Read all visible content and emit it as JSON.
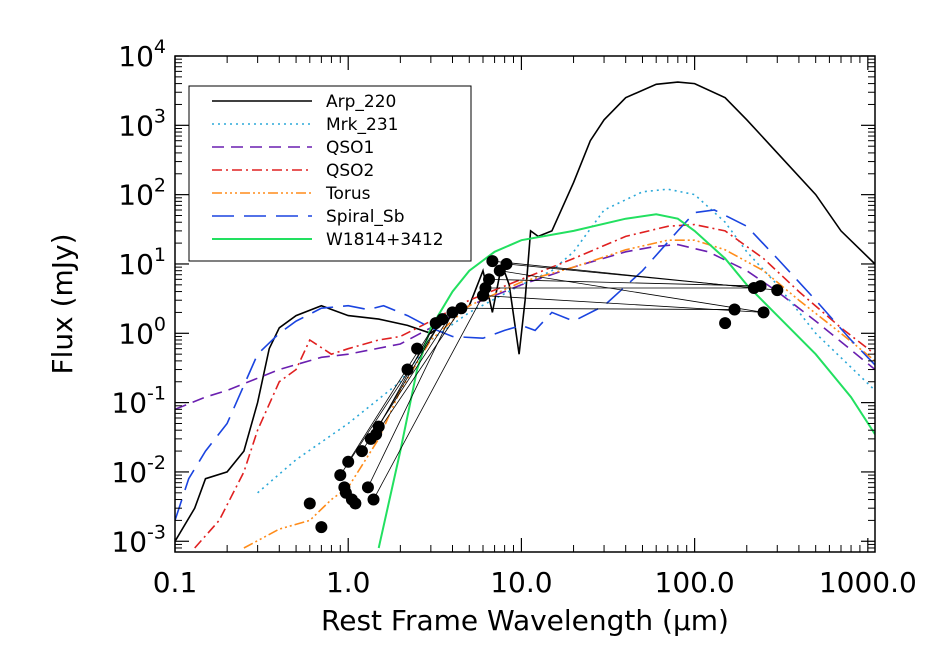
{
  "chart_data": {
    "type": "line",
    "xlabel": "Rest Frame Wavelength (μm)",
    "ylabel": "Flux (mJy)",
    "xscale": "log",
    "yscale": "log",
    "xlim": [
      0.1,
      1100
    ],
    "ylim": [
      0.0007,
      10000
    ],
    "x_ticks": [
      {
        "value": 0.1,
        "label": "0.1"
      },
      {
        "value": 1,
        "label": "1.0"
      },
      {
        "value": 10,
        "label": "10.0"
      },
      {
        "value": 100,
        "label": "100.0"
      },
      {
        "value": 1000,
        "label": "1000.0"
      }
    ],
    "y_ticks": [
      {
        "value": 0.001,
        "base": "10",
        "exp": "-3"
      },
      {
        "value": 0.01,
        "base": "10",
        "exp": "-2"
      },
      {
        "value": 0.1,
        "base": "10",
        "exp": "-1"
      },
      {
        "value": 1,
        "base": "10",
        "exp": "0"
      },
      {
        "value": 10,
        "base": "10",
        "exp": "1"
      },
      {
        "value": 100,
        "base": "10",
        "exp": "2"
      },
      {
        "value": 1000,
        "base": "10",
        "exp": "3"
      },
      {
        "value": 10000,
        "base": "10",
        "exp": "4"
      }
    ],
    "legend_position": "top-left",
    "grid": false,
    "series": [
      {
        "name": "Arp_220",
        "color": "#000000",
        "dash": "none",
        "points": [
          [
            0.1,
            0.001
          ],
          [
            0.13,
            0.003
          ],
          [
            0.15,
            0.008
          ],
          [
            0.2,
            0.01
          ],
          [
            0.25,
            0.02
          ],
          [
            0.3,
            0.1
          ],
          [
            0.35,
            0.6
          ],
          [
            0.4,
            1.2
          ],
          [
            0.5,
            1.8
          ],
          [
            0.7,
            2.5
          ],
          [
            1.0,
            1.8
          ],
          [
            1.5,
            1.6
          ],
          [
            2.2,
            1.3
          ],
          [
            3.0,
            1.0
          ],
          [
            4.0,
            1.8
          ],
          [
            5.0,
            2.5
          ],
          [
            6.0,
            8.0
          ],
          [
            6.8,
            2.0
          ],
          [
            7.7,
            10.0
          ],
          [
            8.5,
            5.0
          ],
          [
            9.7,
            0.5
          ],
          [
            10.5,
            3.0
          ],
          [
            11.3,
            30.0
          ],
          [
            12.5,
            25.0
          ],
          [
            15.0,
            30.0
          ],
          [
            20.0,
            150.0
          ],
          [
            25.0,
            600.0
          ],
          [
            30.0,
            1200.0
          ],
          [
            40.0,
            2500.0
          ],
          [
            60.0,
            3900.0
          ],
          [
            80.0,
            4200.0
          ],
          [
            100.0,
            4000.0
          ],
          [
            150.0,
            2500.0
          ],
          [
            200.0,
            1200.0
          ],
          [
            300.0,
            400.0
          ],
          [
            500.0,
            100.0
          ],
          [
            700.0,
            30.0
          ],
          [
            1100.0,
            10.0
          ]
        ]
      },
      {
        "name": "Mrk_231",
        "color": "#2ba8d8",
        "dash": "2,4",
        "points": [
          [
            0.3,
            0.005
          ],
          [
            0.5,
            0.015
          ],
          [
            1.0,
            0.05
          ],
          [
            2.0,
            0.2
          ],
          [
            3.0,
            0.8
          ],
          [
            5.0,
            2.0
          ],
          [
            10.0,
            5.0
          ],
          [
            15.0,
            8.0
          ],
          [
            20.0,
            15.0
          ],
          [
            30.0,
            60.0
          ],
          [
            50.0,
            110.0
          ],
          [
            70.0,
            120.0
          ],
          [
            100.0,
            100.0
          ],
          [
            150.0,
            40.0
          ],
          [
            200.0,
            15.0
          ],
          [
            300.0,
            5.0
          ],
          [
            500.0,
            1.0
          ],
          [
            1100.0,
            0.15
          ]
        ]
      },
      {
        "name": "QSO1",
        "color": "#6a1fb0",
        "dash": "12,7",
        "points": [
          [
            0.1,
            0.08
          ],
          [
            0.15,
            0.12
          ],
          [
            0.2,
            0.15
          ],
          [
            0.4,
            0.3
          ],
          [
            0.7,
            0.45
          ],
          [
            1.0,
            0.5
          ],
          [
            2.0,
            0.7
          ],
          [
            3.0,
            1.2
          ],
          [
            5.0,
            2.5
          ],
          [
            10.0,
            5.0
          ],
          [
            20.0,
            9.0
          ],
          [
            40.0,
            15.0
          ],
          [
            60.0,
            18.0
          ],
          [
            80.0,
            19.0
          ],
          [
            120.0,
            15.0
          ],
          [
            200.0,
            8.0
          ],
          [
            300.0,
            4.0
          ],
          [
            500.0,
            1.5
          ],
          [
            1100.0,
            0.3
          ]
        ]
      },
      {
        "name": "QSO2",
        "color": "#e02020",
        "dash": "10,4,2,4",
        "points": [
          [
            0.13,
            0.0008
          ],
          [
            0.18,
            0.002
          ],
          [
            0.25,
            0.01
          ],
          [
            0.3,
            0.04
          ],
          [
            0.4,
            0.2
          ],
          [
            0.5,
            0.3
          ],
          [
            0.6,
            0.8
          ],
          [
            0.8,
            0.5
          ],
          [
            1.0,
            0.6
          ],
          [
            1.5,
            0.8
          ],
          [
            2.0,
            0.9
          ],
          [
            3.0,
            1.5
          ],
          [
            5.0,
            3.0
          ],
          [
            10.0,
            6.0
          ],
          [
            20.0,
            12.0
          ],
          [
            40.0,
            25.0
          ],
          [
            70.0,
            35.0
          ],
          [
            100.0,
            37.0
          ],
          [
            150.0,
            30.0
          ],
          [
            250.0,
            12.0
          ],
          [
            400.0,
            4.0
          ],
          [
            700.0,
            1.2
          ],
          [
            1100.0,
            0.5
          ]
        ]
      },
      {
        "name": "Torus",
        "color": "#ff8c1a",
        "dash": "10,3,2,3,2,3,2,3",
        "points": [
          [
            0.25,
            0.0008
          ],
          [
            0.4,
            0.0015
          ],
          [
            0.6,
            0.002
          ],
          [
            0.8,
            0.004
          ],
          [
            1.0,
            0.006
          ],
          [
            1.5,
            0.03
          ],
          [
            2.0,
            0.15
          ],
          [
            3.0,
            0.8
          ],
          [
            5.0,
            2.5
          ],
          [
            10.0,
            5.5
          ],
          [
            20.0,
            9.0
          ],
          [
            40.0,
            16.0
          ],
          [
            70.0,
            22.0
          ],
          [
            100.0,
            22.0
          ],
          [
            150.0,
            16.0
          ],
          [
            250.0,
            8.0
          ],
          [
            400.0,
            3.0
          ],
          [
            700.0,
            1.0
          ],
          [
            1100.0,
            0.4
          ]
        ]
      },
      {
        "name": "Spiral_Sb",
        "color": "#1a44e0",
        "dash": "22,10",
        "points": [
          [
            0.1,
            0.002
          ],
          [
            0.12,
            0.008
          ],
          [
            0.15,
            0.02
          ],
          [
            0.2,
            0.05
          ],
          [
            0.3,
            0.5
          ],
          [
            0.4,
            1.0
          ],
          [
            0.5,
            1.5
          ],
          [
            0.7,
            2.3
          ],
          [
            1.0,
            2.5
          ],
          [
            1.3,
            2.2
          ],
          [
            1.6,
            2.5
          ],
          [
            2.2,
            1.8
          ],
          [
            3.0,
            1.2
          ],
          [
            4.0,
            0.9
          ],
          [
            6.0,
            0.85
          ],
          [
            8.0,
            1.1
          ],
          [
            10.0,
            1.3
          ],
          [
            12.0,
            1.1
          ],
          [
            15.0,
            2.0
          ],
          [
            20.0,
            1.5
          ],
          [
            30.0,
            2.5
          ],
          [
            50.0,
            8.0
          ],
          [
            80.0,
            30.0
          ],
          [
            100.0,
            55.0
          ],
          [
            130.0,
            60.0
          ],
          [
            200.0,
            35.0
          ],
          [
            300.0,
            12.0
          ],
          [
            500.0,
            3.0
          ],
          [
            800.0,
            0.8
          ],
          [
            1100.0,
            0.35
          ]
        ]
      },
      {
        "name": "W1814+3412",
        "color": "#22e060",
        "dash": "none",
        "points": [
          [
            1.5,
            0.0008
          ],
          [
            2.0,
            0.02
          ],
          [
            2.5,
            0.3
          ],
          [
            3.0,
            1.2
          ],
          [
            4.0,
            4.0
          ],
          [
            5.0,
            8.0
          ],
          [
            7.0,
            15.0
          ],
          [
            10.0,
            22.0
          ],
          [
            20.0,
            30.0
          ],
          [
            40.0,
            45.0
          ],
          [
            60.0,
            52.0
          ],
          [
            80.0,
            45.0
          ],
          [
            100.0,
            30.0
          ],
          [
            150.0,
            12.0
          ],
          [
            200.0,
            5.0
          ],
          [
            300.0,
            1.8
          ],
          [
            500.0,
            0.5
          ],
          [
            800.0,
            0.12
          ],
          [
            1100.0,
            0.035
          ]
        ]
      }
    ],
    "points": [
      [
        0.6,
        0.0035
      ],
      [
        0.7,
        0.0016
      ],
      [
        0.9,
        0.009
      ],
      [
        0.95,
        0.006
      ],
      [
        0.97,
        0.005
      ],
      [
        1.0,
        0.014
      ],
      [
        1.05,
        0.004
      ],
      [
        1.1,
        0.0035
      ],
      [
        1.2,
        0.02
      ],
      [
        1.3,
        0.006
      ],
      [
        1.35,
        0.03
      ],
      [
        1.4,
        0.004
      ],
      [
        1.45,
        0.035
      ],
      [
        1.5,
        0.045
      ],
      [
        2.2,
        0.3
      ],
      [
        2.5,
        0.6
      ],
      [
        3.2,
        1.4
      ],
      [
        3.5,
        1.6
      ],
      [
        4.0,
        2.0
      ],
      [
        4.5,
        2.3
      ],
      [
        6.0,
        3.5
      ],
      [
        6.2,
        4.5
      ],
      [
        6.5,
        6.0
      ],
      [
        6.8,
        11.0
      ],
      [
        7.5,
        8.0
      ],
      [
        8.2,
        10.0
      ],
      [
        150.0,
        1.4
      ],
      [
        170.0,
        2.2
      ],
      [
        220.0,
        4.5
      ],
      [
        240.0,
        4.8
      ],
      [
        250.0,
        2.0
      ],
      [
        300.0,
        4.2
      ]
    ],
    "links": [
      [
        1.5,
        0.045,
        3.2,
        1.4
      ],
      [
        1.35,
        0.03,
        3.5,
        1.6
      ],
      [
        1.2,
        0.02,
        4.0,
        2.0
      ],
      [
        1.45,
        0.035,
        4.5,
        2.3
      ],
      [
        1.0,
        0.014,
        3.2,
        1.4
      ],
      [
        0.9,
        0.009,
        3.5,
        1.6
      ],
      [
        1.3,
        0.006,
        4.0,
        2.0
      ],
      [
        1.4,
        0.004,
        6.0,
        3.5
      ],
      [
        6.5,
        6.0,
        240.0,
        4.8
      ],
      [
        6.8,
        11.0,
        220.0,
        4.5
      ],
      [
        7.5,
        8.0,
        250.0,
        2.0
      ],
      [
        8.2,
        10.0,
        300.0,
        4.2
      ],
      [
        6.2,
        4.5,
        220.0,
        4.5
      ],
      [
        6.0,
        3.5,
        250.0,
        2.0
      ],
      [
        4.5,
        2.3,
        170.0,
        2.2
      ]
    ]
  }
}
